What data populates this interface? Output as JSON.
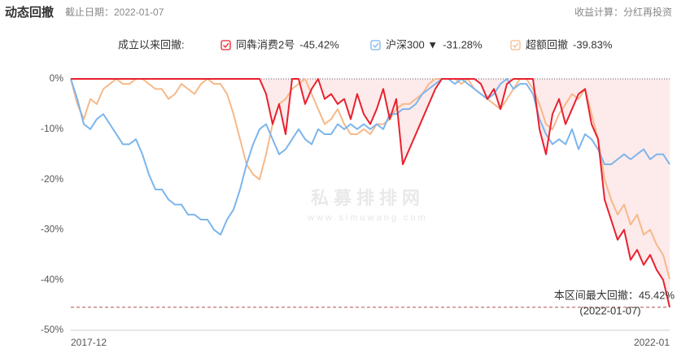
{
  "header": {
    "title": "动态回撤",
    "date": "截止日期：2022-01-07",
    "note": "收益计算：分红再投资"
  },
  "watermark": {
    "main": "私募排排网",
    "sub": "www.simuwang.com"
  },
  "chart_data": {
    "type": "line",
    "legend_title": "成立以来回撤:",
    "categories": [
      "2017-12",
      null,
      null,
      null,
      null,
      null,
      null,
      null,
      null,
      null,
      null,
      null,
      null,
      null,
      null,
      null,
      null,
      null,
      null,
      null,
      null,
      null,
      null,
      null,
      null,
      null,
      null,
      null,
      null,
      null,
      null,
      null,
      null,
      null,
      null,
      null,
      null,
      null,
      null,
      null,
      null,
      null,
      null,
      null,
      null,
      null,
      null,
      null,
      null,
      null,
      null,
      null,
      null,
      null,
      null,
      null,
      null,
      null,
      null,
      null,
      null,
      null,
      null,
      null,
      null,
      null,
      null,
      null,
      null,
      null,
      null,
      null,
      null,
      null,
      null,
      null,
      null,
      null,
      null,
      null,
      null,
      null,
      null,
      null,
      null,
      null,
      null,
      null,
      null,
      null,
      null,
      null,
      "2022-01"
    ],
    "series": [
      {
        "name": "同犇消费2号",
        "legend_label": "-45.42%",
        "color": "#e8212f",
        "area": true,
        "values": [
          0,
          0,
          0,
          0,
          0,
          0,
          0,
          0,
          0,
          0,
          0,
          0,
          0,
          0,
          0,
          0,
          0,
          0,
          0,
          0,
          0,
          0,
          0,
          0,
          0,
          0,
          0,
          0,
          0,
          0,
          -3,
          -9,
          -5,
          -11,
          0,
          0,
          -5,
          -2,
          0,
          -4,
          -3,
          -5,
          -4,
          -8,
          -3,
          -7,
          -9,
          -6,
          -2,
          -8,
          -4,
          -17,
          -14,
          -11,
          -8,
          -5,
          -2,
          0,
          0,
          0,
          0,
          0,
          0,
          -1,
          -4,
          -2,
          -6,
          -1,
          0,
          0,
          0,
          0,
          -10,
          -15,
          -7,
          -4,
          -9,
          -6,
          -3,
          -2,
          -9,
          -12,
          -24,
          -28,
          -32,
          -30,
          -36,
          -34,
          -37,
          -35,
          -38,
          -40,
          -45.42
        ]
      },
      {
        "name": "沪深300 ▼",
        "legend_label": "-31.28%",
        "color": "#7cb5ec",
        "area": false,
        "values": [
          0,
          -4,
          -9,
          -10,
          -8,
          -7,
          -9,
          -11,
          -13,
          -13,
          -12,
          -15,
          -19,
          -22,
          -22,
          -24,
          -25,
          -25,
          -27,
          -27,
          -28,
          -28,
          -30,
          -31,
          -28,
          -26,
          -22,
          -17,
          -13,
          -10,
          -9,
          -12,
          -15,
          -14,
          -12,
          -10,
          -12,
          -13,
          -10,
          -11,
          -11,
          -9,
          -10,
          -9,
          -10,
          -9,
          -10,
          -9,
          -10,
          -7,
          -7,
          -6,
          -6,
          -5,
          -3,
          -2,
          -1,
          0,
          0,
          -1,
          0,
          -1,
          -2,
          -3,
          -4,
          -3,
          -1,
          0,
          -2,
          -1,
          -1,
          -3,
          -8,
          -11,
          -13,
          -12,
          -13,
          -10,
          -14,
          -11,
          -12,
          -14,
          -17,
          -17,
          -16,
          -15,
          -16,
          -15,
          -14,
          -16,
          -15,
          -15,
          -17
        ]
      },
      {
        "name": "超额回撤",
        "legend_label": "-39.83%",
        "color": "#f5b98a",
        "area": false,
        "values": [
          0,
          -5,
          -8,
          -4,
          -5,
          -2,
          -1,
          0,
          -1,
          -1,
          0,
          0,
          -1,
          -2,
          -2,
          -4,
          -3,
          -1,
          -2,
          -3,
          -1,
          0,
          -1,
          -1,
          -3,
          -7,
          -12,
          -17,
          -19,
          -20,
          -15,
          -9,
          -5,
          -4,
          -2,
          -1,
          0,
          -3,
          -6,
          -9,
          -8,
          -6,
          -9,
          -11,
          -11,
          -10,
          -11,
          -9,
          -9,
          -8,
          -6,
          -5,
          -5,
          -4,
          -3,
          -1,
          0,
          0,
          0,
          0,
          -1,
          0,
          -2,
          -3,
          -4,
          -5,
          -6,
          -4,
          -2,
          0,
          0,
          -2,
          -5,
          -9,
          -10,
          -7,
          -5,
          -3,
          -4,
          -2,
          -7,
          -12,
          -20,
          -24,
          -27,
          -25,
          -29,
          -27,
          -31,
          -30,
          -33,
          -35,
          -39.83
        ]
      }
    ],
    "ylim": [
      -50,
      0
    ],
    "yticks": [
      {
        "value": 0,
        "label": "0%"
      },
      {
        "value": -10,
        "label": "-10%"
      },
      {
        "value": -20,
        "label": "-20%"
      },
      {
        "value": -30,
        "label": "-30%"
      },
      {
        "value": -40,
        "label": "-40%"
      },
      {
        "value": -50,
        "label": "-50%"
      }
    ],
    "grid": false,
    "annotation": {
      "text": "本区间最大回撤：45.42%",
      "date": "(2022-01-07)",
      "value": -45.42
    }
  }
}
